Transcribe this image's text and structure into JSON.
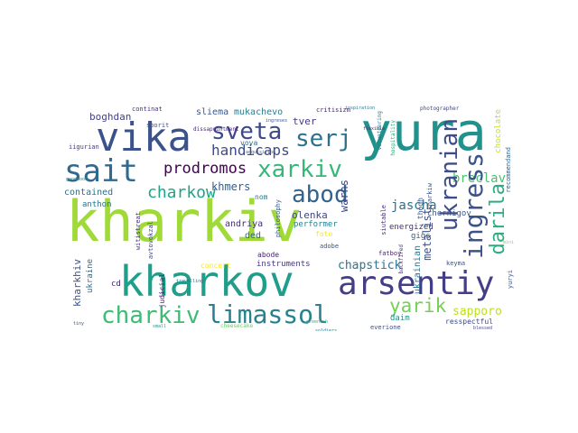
{
  "words": {
    "kharkiv": "kharkiv",
    "kharkov": "kharkov",
    "yura": "yura",
    "vika": "vika",
    "sait": "sait",
    "arsentiy": "arsentiy",
    "xarkiv": "xarkiv",
    "sveta": "sveta",
    "serj": "serj",
    "abod": "abod",
    "charkiv": "charkiv",
    "limassol": "limassol",
    "charkow": "charkow",
    "prodromos": "prodromos",
    "ukranian": "ukranian",
    "ingress": "ingress",
    "darila": "darila",
    "handicaps": "handicaps",
    "yarik": "yarik",
    "jascha": "jascha",
    "warns": "warns",
    "metalist": "metalist",
    "breclav": "breclav",
    "sapporo": "sapporo",
    "khmers": "khmers",
    "boghdan": "boghdan",
    "sliema": "sliema",
    "mukachevo": "mukachevo",
    "tver": "tver",
    "chapstick": "chapstick",
    "olenka": "olenka",
    "andriya": "andriya",
    "anthon": "anthon",
    "contained": "contained",
    "energized": "energized",
    "ded": "ded",
    "foto": "foto",
    "ukraine": "ukraine",
    "kharkhiv": "kharkhiv",
    "gigs": "gigs",
    "performer": "performer",
    "adobe": "adobe",
    "fatboy": "fatboy",
    "concert": "concert",
    "instruments": "instruments",
    "daim": "daim",
    "resspectful": "resspectful",
    "ukrainian": "ukrainian",
    "chernigov": "chernigov",
    "criticism": "critisizm",
    "vova": "vova",
    "nom": "nom",
    "philosophy": "philosophy",
    "abode": "abode",
    "judicial": "judicial",
    "witistreat": "witistreat",
    "kolobok": "kolobok",
    "continat": "continat",
    "iigurian": "iigurian",
    "sporit": "sporit",
    "cd": "cd",
    "yuryi": "yuryi",
    "keyma": "keyma",
    "thogh": "thogh",
    "siutable": "siutable",
    "backfired": "backfired",
    "recommendand": "recommendand",
    "chocolate": "chocolate",
    "photographer": "photographer",
    "inspiration": "inspiration",
    "everione": "everione",
    "kharkiw": "kharkiw",
    "dissapointment": "dissapointment",
    "volunteering": "volunteering",
    "hospitality": "hospitality",
    "avtovokzal": "avtovokzal",
    "travelling": "travelling",
    "acquisition": "acquisition",
    "flexible": "flexible",
    "goodmood": "goodmood",
    "cheesecake": "cheesecake",
    "ingreses": "ingreses",
    "greenish": "greenish",
    "soldiers": "soldiers",
    "blessed": "blessed",
    "tiny1": "tiny",
    "tiny2": "small",
    "tiny3": "mini"
  },
  "colors": {
    "deep_purple": "#440154",
    "indigo": "#3b528b",
    "blue": "#31688e",
    "teal": "#21918c",
    "green": "#35b779",
    "lime": "#90d743",
    "yellow": "#c8e020"
  }
}
